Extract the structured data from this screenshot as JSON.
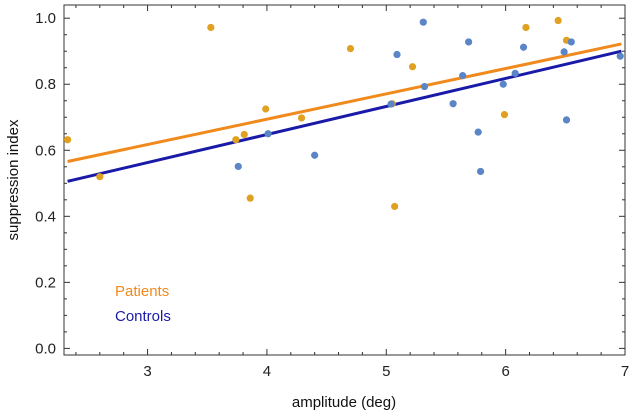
{
  "chart_data": {
    "type": "scatter",
    "xlabel": "amplitude (deg)",
    "ylabel": "suppression index",
    "xlim": [
      2.3,
      7.0
    ],
    "ylim": [
      -0.02,
      1.04
    ],
    "xticks": [
      3,
      4,
      5,
      6,
      7
    ],
    "yticks": [
      0.0,
      0.2,
      0.4,
      0.6,
      0.8,
      1.0
    ],
    "ytick_labels": [
      "0.0",
      "0.2",
      "0.4",
      "0.6",
      "0.8",
      "1.0"
    ],
    "grid": false,
    "legend_position": "bottom-left",
    "series": [
      {
        "name": "Patients",
        "point_color": "#e0a020",
        "fit_color": "#f08a1c",
        "fit": [
          [
            2.33,
            0.566
          ],
          [
            6.97,
            0.922
          ]
        ],
        "points": [
          [
            2.33,
            0.632
          ],
          [
            2.6,
            0.52
          ],
          [
            3.53,
            0.972
          ],
          [
            3.74,
            0.632
          ],
          [
            3.81,
            0.648
          ],
          [
            3.86,
            0.455
          ],
          [
            3.99,
            0.725
          ],
          [
            4.29,
            0.698
          ],
          [
            4.7,
            0.908
          ],
          [
            5.05,
            0.741
          ],
          [
            5.07,
            0.43
          ],
          [
            5.22,
            0.853
          ],
          [
            5.99,
            0.708
          ],
          [
            6.17,
            0.972
          ],
          [
            6.44,
            0.993
          ],
          [
            6.51,
            0.933
          ]
        ]
      },
      {
        "name": "Controls",
        "point_color": "#5a85c6",
        "fit_color": "#1a1aa8",
        "fit": [
          [
            2.33,
            0.506
          ],
          [
            6.97,
            0.9
          ]
        ],
        "points": [
          [
            3.76,
            0.551
          ],
          [
            4.01,
            0.65
          ],
          [
            4.4,
            0.585
          ],
          [
            5.04,
            0.74
          ],
          [
            5.09,
            0.89
          ],
          [
            5.31,
            0.988
          ],
          [
            5.32,
            0.793
          ],
          [
            5.56,
            0.741
          ],
          [
            5.64,
            0.826
          ],
          [
            5.69,
            0.928
          ],
          [
            5.77,
            0.655
          ],
          [
            5.79,
            0.536
          ],
          [
            5.98,
            0.8
          ],
          [
            6.08,
            0.833
          ],
          [
            6.15,
            0.912
          ],
          [
            6.49,
            0.898
          ],
          [
            6.51,
            0.692
          ],
          [
            6.55,
            0.928
          ],
          [
            6.96,
            0.885
          ]
        ]
      }
    ]
  }
}
